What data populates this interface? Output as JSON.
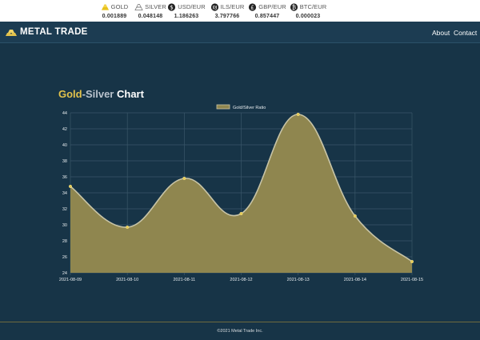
{
  "ticker": [
    {
      "name": "GOLD",
      "value": "0.001889",
      "icon": "gold-bars-icon"
    },
    {
      "name": "SILVER",
      "value": "0.048148",
      "icon": "silver-bars-icon"
    },
    {
      "name": "USD/EUR",
      "value": "1.186263",
      "icon": "dollar-coin-icon"
    },
    {
      "name": "ILS/EUR",
      "value": "3.797766",
      "icon": "shekel-coin-icon"
    },
    {
      "name": "GBP/EUR",
      "value": "0.857447",
      "icon": "pound-coin-icon"
    },
    {
      "name": "BTC/EUR",
      "value": "0.000023",
      "icon": "bitcoin-coin-icon"
    }
  ],
  "nav": {
    "brand": "METAL TRADE",
    "links": [
      "About",
      "Contact"
    ]
  },
  "page": {
    "title_gold": "Gold",
    "title_dash": "-",
    "title_silver": "Silver",
    "title_chart": " Chart"
  },
  "chart_data": {
    "type": "area",
    "categories": [
      "2021-08-09",
      "2021-08-10",
      "2021-08-11",
      "2021-08-12",
      "2021-08-13",
      "2021-08-14",
      "2021-08-15"
    ],
    "series": [
      {
        "name": "Gold/Silver Ratio",
        "values": [
          34.8,
          29.7,
          35.8,
          31.4,
          43.8,
          31.1,
          25.4
        ]
      }
    ],
    "ylim": [
      24,
      44
    ],
    "yticks": [
      24,
      26,
      28,
      30,
      32,
      34,
      36,
      38,
      40,
      42,
      44
    ],
    "legend": "top-center",
    "grid": true,
    "colors": {
      "fill": "#8f864f",
      "line": "#c8c4a6",
      "point": "#e6cb55",
      "grid": "#3a5669"
    }
  },
  "footer": {
    "text": "©2021 Metal Trade Inc."
  }
}
